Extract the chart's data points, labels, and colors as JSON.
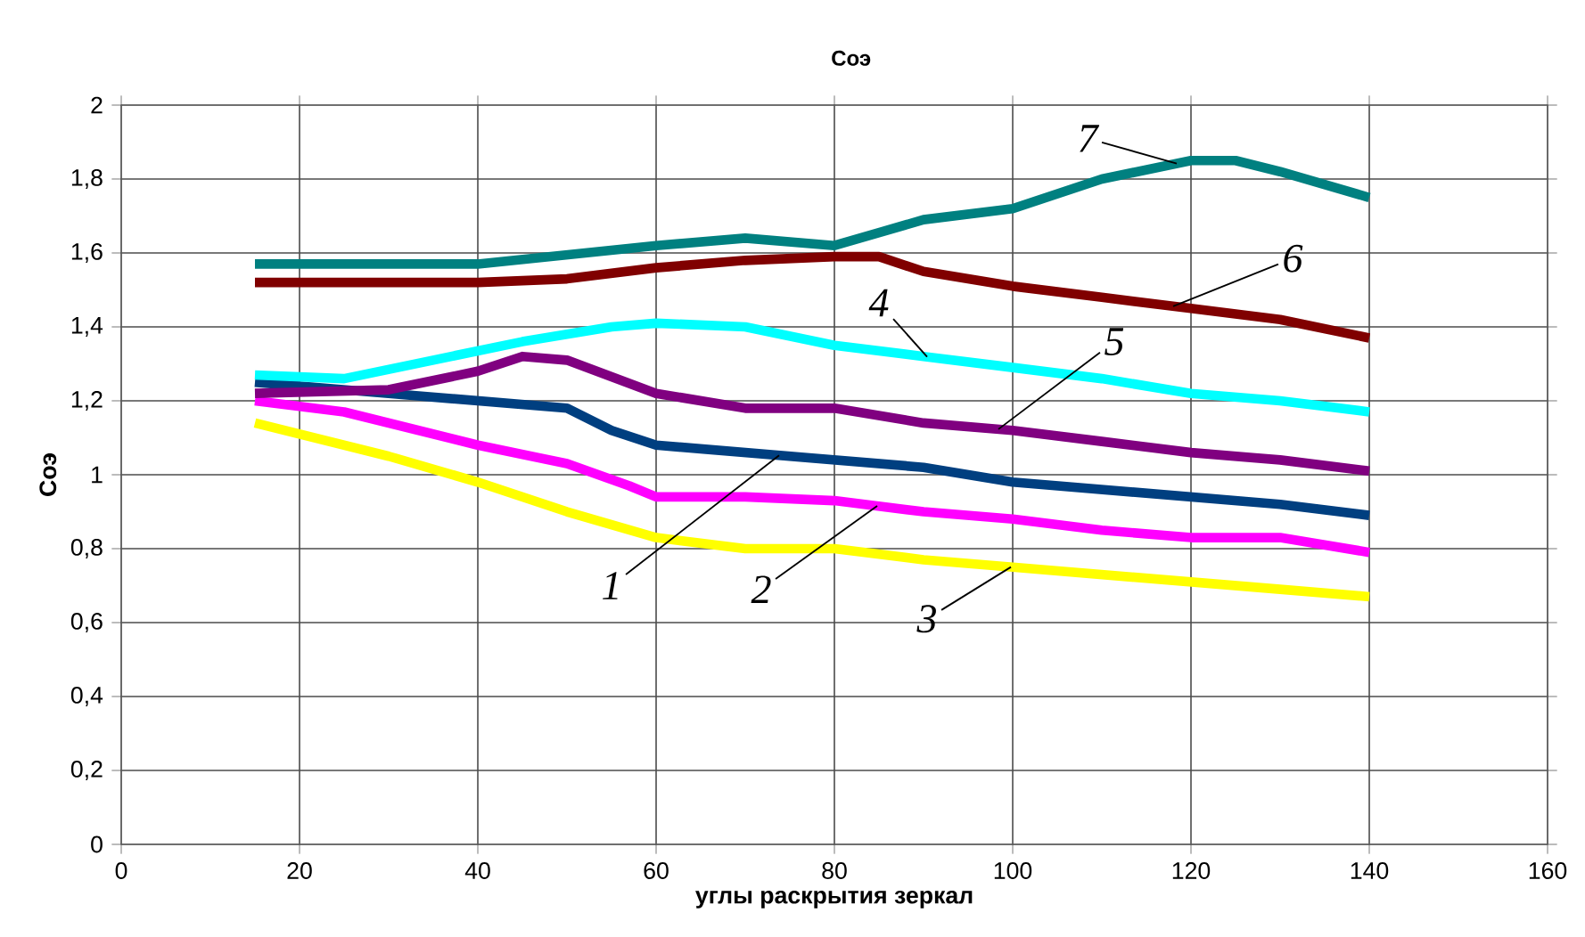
{
  "chart_data": {
    "type": "line",
    "title": "Соэ",
    "xlabel": "углы раскрытия зеркал",
    "ylabel": "Соэ",
    "xlim": [
      0,
      160
    ],
    "xticks": [
      0,
      20,
      40,
      60,
      80,
      100,
      120,
      140,
      160
    ],
    "ylim": [
      0,
      2
    ],
    "yticks": [
      0,
      {
        "value": 0.2,
        "label": "0,2"
      },
      {
        "value": 0.4,
        "label": "0,4"
      },
      {
        "value": 0.6,
        "label": "0,6"
      },
      {
        "value": 0.8,
        "label": "0,8"
      },
      1,
      {
        "value": 1.2,
        "label": "1,2"
      },
      {
        "value": 1.4,
        "label": "1,4"
      },
      {
        "value": 1.6,
        "label": "1,6"
      },
      {
        "value": 1.8,
        "label": "1,8"
      },
      2
    ],
    "grid": true,
    "marker": "none",
    "line_style": "solid",
    "series": [
      {
        "name": "1",
        "color": "#003f80",
        "x": [
          15,
          30,
          40,
          50,
          55,
          60,
          70,
          80,
          90,
          100,
          110,
          120,
          130,
          140
        ],
        "values": [
          1.25,
          1.22,
          1.2,
          1.18,
          1.12,
          1.08,
          1.06,
          1.04,
          1.02,
          0.98,
          0.96,
          0.94,
          0.92,
          0.89
        ]
      },
      {
        "name": "2",
        "color": "#ff00ff",
        "x": [
          15,
          25,
          40,
          50,
          57,
          60,
          70,
          80,
          90,
          100,
          110,
          120,
          130,
          140
        ],
        "values": [
          1.2,
          1.17,
          1.08,
          1.03,
          0.97,
          0.94,
          0.94,
          0.93,
          0.9,
          0.88,
          0.85,
          0.83,
          0.83,
          0.79
        ]
      },
      {
        "name": "3",
        "color": "#ffff00",
        "x": [
          15,
          30,
          40,
          50,
          60,
          70,
          80,
          90,
          100,
          110,
          120,
          130,
          140
        ],
        "values": [
          1.14,
          1.05,
          0.98,
          0.9,
          0.83,
          0.8,
          0.8,
          0.77,
          0.75,
          0.73,
          0.71,
          0.69,
          0.67
        ]
      },
      {
        "name": "4",
        "color": "#00ffff",
        "x": [
          15,
          25,
          35,
          45,
          55,
          60,
          70,
          80,
          90,
          100,
          110,
          120,
          130,
          140
        ],
        "values": [
          1.27,
          1.26,
          1.31,
          1.36,
          1.4,
          1.41,
          1.4,
          1.35,
          1.32,
          1.29,
          1.26,
          1.22,
          1.2,
          1.17
        ]
      },
      {
        "name": "5",
        "color": "#800080",
        "x": [
          15,
          30,
          40,
          45,
          50,
          60,
          70,
          80,
          90,
          100,
          110,
          120,
          130,
          140
        ],
        "values": [
          1.22,
          1.23,
          1.28,
          1.32,
          1.31,
          1.22,
          1.18,
          1.18,
          1.14,
          1.12,
          1.09,
          1.06,
          1.04,
          1.01
        ]
      },
      {
        "name": "6",
        "color": "#800000",
        "x": [
          15,
          40,
          50,
          60,
          70,
          80,
          85,
          90,
          100,
          110,
          120,
          130,
          140
        ],
        "values": [
          1.52,
          1.52,
          1.53,
          1.56,
          1.58,
          1.59,
          1.59,
          1.55,
          1.51,
          1.48,
          1.45,
          1.42,
          1.37
        ]
      },
      {
        "name": "7",
        "color": "#008080",
        "x": [
          15,
          40,
          60,
          70,
          80,
          90,
          100,
          110,
          120,
          125,
          130,
          140
        ],
        "values": [
          1.57,
          1.57,
          1.62,
          1.64,
          1.62,
          1.69,
          1.72,
          1.8,
          1.85,
          1.85,
          1.82,
          1.75
        ]
      }
    ]
  }
}
